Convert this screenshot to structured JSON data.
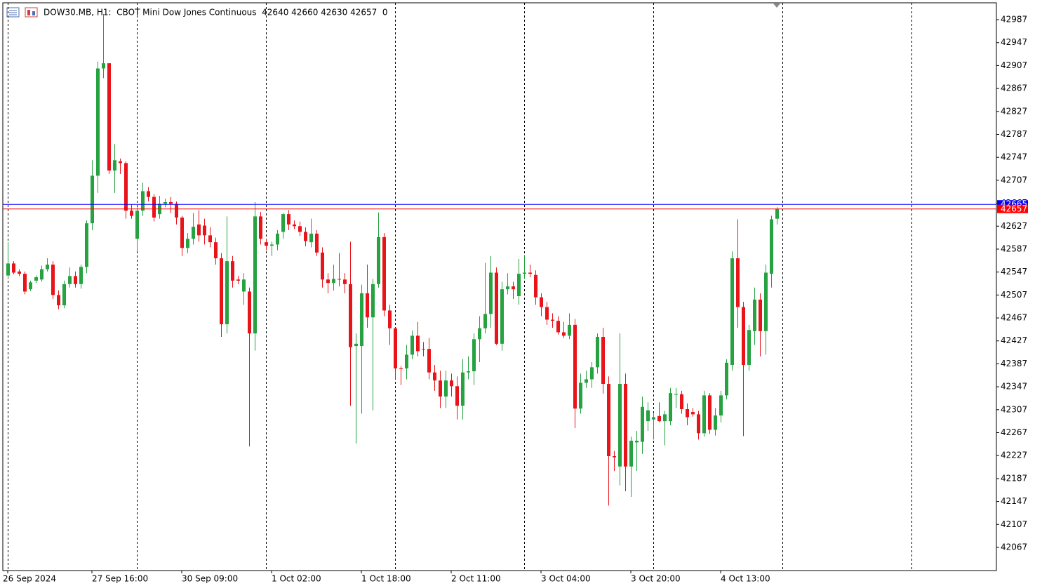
{
  "chart_data": {
    "type": "candlestick",
    "title": "DOW30.MB, H1:  CBOT Mini Dow Jones Continuous  42640 42660 42630 42657  0",
    "up_color": "#26a241",
    "down_color": "#e8141a",
    "ylim": [
      42026.6,
      43016.4
    ],
    "yticks": [
      42987,
      42947,
      42907,
      42867,
      42827,
      42787,
      42747,
      42707,
      42667,
      42627,
      42587,
      42547,
      42507,
      42467,
      42427,
      42387,
      42347,
      42307,
      42267,
      42227,
      42187,
      42147,
      42107,
      42067
    ],
    "price_lines": [
      {
        "value": 42665,
        "color": "#0000ff"
      },
      {
        "value": 42657,
        "color": "#ff0000"
      }
    ],
    "categories": [
      "26 Sep 2024",
      null,
      null,
      null,
      null,
      null,
      null,
      null,
      null,
      null,
      null,
      null,
      null,
      null,
      null,
      "27 Sep 16:00",
      null,
      null,
      null,
      null,
      null,
      null,
      null,
      null,
      null,
      null,
      null,
      null,
      null,
      null,
      null,
      "30 Sep 09:00",
      null,
      null,
      null,
      null,
      null,
      null,
      null,
      null,
      null,
      null,
      null,
      null,
      null,
      null,
      null,
      "1 Oct 02:00",
      null,
      null,
      null,
      null,
      null,
      null,
      null,
      null,
      null,
      null,
      null,
      null,
      null,
      null,
      null,
      "1 Oct 18:00",
      null,
      null,
      null,
      null,
      null,
      null,
      null,
      null,
      null,
      null,
      null,
      null,
      null,
      null,
      null,
      "2 Oct 11:00",
      null,
      null,
      null,
      null,
      null,
      null,
      null,
      null,
      null,
      null,
      null,
      null,
      null,
      null,
      null,
      "3 Oct 04:00",
      null,
      null,
      null,
      null,
      null,
      null,
      null,
      null,
      null,
      null,
      null,
      null,
      null,
      null,
      null,
      "3 Oct 20:00",
      null,
      null,
      null,
      null,
      null,
      null,
      null,
      null,
      null,
      null,
      null,
      null,
      null,
      null,
      null,
      "4 Oct 13:00",
      null,
      null,
      null,
      null,
      null,
      null,
      null,
      null,
      null,
      null
    ],
    "open": [
      42541,
      42562,
      42548,
      42544,
      42517,
      42532,
      42534,
      42552,
      42560,
      42507,
      42489,
      42526,
      42540,
      42526,
      42556,
      42632,
      42715,
      42902,
      42911,
      42724,
      42740,
      42737,
      42654,
      42605,
      42654,
      42688,
      42678,
      42648,
      42666,
      42669,
      42666,
      42642,
      42589,
      42605,
      42630,
      42628,
      42611,
      42599,
      42571,
      42456,
      42566,
      42534,
      42513,
      42513,
      42440,
      42644,
      42599,
      42593,
      42595,
      42617,
      42648,
      42630,
      42627,
      42617,
      42599,
      42614,
      42581,
      42534,
      42528,
      42535,
      42534,
      42526,
      42418,
      42418,
      42510,
      42468,
      42526,
      42608,
      42480,
      42449,
      42379,
      42379,
      42403,
      42436,
      42413,
      42413,
      42372,
      42358,
      42330,
      42358,
      42348,
      42314,
      42372,
      42374,
      42430,
      42449,
      42474,
      42546,
      42422,
      42517,
      42522,
      42505,
      42544,
      42546,
      42542,
      42503,
      42486,
      42464,
      42462,
      42442,
      42436,
      42455,
      42309,
      42354,
      42360,
      42381,
      42434,
      42352,
      42226,
      42208,
      42352,
      42208,
      42250,
      42251,
      42287,
      42290,
      42296,
      42287,
      42287,
      42333,
      42334,
      42308,
      42303,
      42299,
      42266,
      42332,
      42272,
      42297,
      42332,
      42385,
      42571,
      42486,
      42385,
      42444,
      42499,
      42444,
      42544,
      42640
    ],
    "high": [
      42599,
      42566,
      42552,
      42548,
      42532,
      42541,
      42558,
      42571,
      42566,
      42515,
      42532,
      42555,
      42548,
      42560,
      42637,
      42742,
      42914,
      42997,
      42911,
      42770,
      42745,
      42740,
      42665,
      42660,
      42703,
      42695,
      42683,
      42680,
      42675,
      42678,
      42670,
      42645,
      42615,
      42650,
      42655,
      42640,
      42625,
      42607,
      42580,
      42644,
      42575,
      42540,
      42545,
      42520,
      42669,
      42652,
      42605,
      42600,
      42620,
      42650,
      42655,
      42637,
      42635,
      42625,
      42640,
      42620,
      42590,
      42545,
      42560,
      42580,
      42545,
      42600,
      42440,
      42525,
      42560,
      42535,
      42651,
      42615,
      42490,
      42450,
      42383,
      42420,
      42445,
      42460,
      42425,
      42432,
      42385,
      42375,
      42375,
      42370,
      42365,
      42395,
      42400,
      42440,
      42470,
      42563,
      42575,
      42555,
      42530,
      42545,
      42530,
      42570,
      42575,
      42560,
      42550,
      42510,
      42495,
      42475,
      42470,
      42460,
      42475,
      42465,
      42370,
      42375,
      42390,
      42440,
      42450,
      42365,
      42235,
      42440,
      42370,
      42260,
      42270,
      42330,
      42320,
      42300,
      42320,
      42305,
      42345,
      42345,
      42340,
      42318,
      42310,
      42305,
      42340,
      42336,
      42310,
      42340,
      42395,
      42583,
      42639,
      42495,
      42455,
      42520,
      42510,
      42560,
      42645,
      42660
    ],
    "low": [
      42537,
      42543,
      42540,
      42508,
      42514,
      42528,
      42530,
      42548,
      42500,
      42482,
      42484,
      42520,
      42520,
      42518,
      42545,
      42620,
      42685,
      42885,
      42718,
      42685,
      42718,
      42640,
      42640,
      42583,
      42645,
      42670,
      42635,
      42640,
      42660,
      42650,
      42630,
      42575,
      42580,
      42595,
      42600,
      42595,
      42590,
      42560,
      42434,
      42440,
      42520,
      42526,
      42490,
      42243,
      42410,
      42595,
      42585,
      42575,
      42585,
      42605,
      42620,
      42622,
      42610,
      42592,
      42590,
      42575,
      42520,
      42510,
      42515,
      42522,
      42510,
      42314,
      42248,
      42300,
      42450,
      42306,
      42520,
      42470,
      42420,
      42360,
      42350,
      42360,
      42395,
      42400,
      42400,
      42360,
      42340,
      42310,
      42310,
      42330,
      42290,
      42290,
      42360,
      42350,
      42390,
      42440,
      42450,
      42420,
      42410,
      42508,
      42500,
      42490,
      42535,
      42538,
      42490,
      42470,
      42455,
      42450,
      42438,
      42432,
      42430,
      42275,
      42300,
      42345,
      42345,
      42370,
      42335,
      42140,
      42200,
      42175,
      42165,
      42155,
      42200,
      42230,
      42270,
      42255,
      42285,
      42245,
      42280,
      42310,
      42300,
      42280,
      42295,
      42255,
      42260,
      42265,
      42262,
      42285,
      42325,
      42375,
      42450,
      42261,
      42375,
      42420,
      42400,
      42403,
      42520,
      42630
    ],
    "close": [
      42562,
      42546,
      42544,
      42513,
      42529,
      42538,
      42552,
      42560,
      42507,
      42489,
      42526,
      42540,
      42526,
      42556,
      42632,
      42715,
      42902,
      42911,
      42724,
      42742,
      42737,
      42654,
      42645,
      42654,
      42688,
      42678,
      42642,
      42666,
      42669,
      42666,
      42642,
      42589,
      42605,
      42626,
      42611,
      42611,
      42599,
      42571,
      42456,
      42566,
      42532,
      42532,
      42534,
      42440,
      42644,
      42605,
      42593,
      42595,
      42614,
      42648,
      42630,
      42627,
      42617,
      42601,
      42614,
      42581,
      42534,
      42528,
      42535,
      42534,
      42526,
      42416,
      42422,
      42510,
      42468,
      42526,
      42608,
      42480,
      42449,
      42379,
      42378,
      42403,
      42436,
      42409,
      42412,
      42372,
      42358,
      42330,
      42358,
      42348,
      42314,
      42372,
      42374,
      42430,
      42449,
      42474,
      42546,
      42422,
      42517,
      42522,
      42517,
      42544,
      42546,
      42544,
      42503,
      42486,
      42464,
      42462,
      42442,
      42436,
      42455,
      42309,
      42354,
      42360,
      42381,
      42434,
      42352,
      42226,
      42224,
      42352,
      42208,
      42253,
      42253,
      42312,
      42306,
      42294,
      42287,
      42299,
      42336,
      42334,
      42308,
      42294,
      42299,
      42266,
      42332,
      42272,
      42297,
      42332,
      42389,
      42571,
      42486,
      42385,
      42446,
      42499,
      42444,
      42546,
      42639,
      42657
    ]
  }
}
